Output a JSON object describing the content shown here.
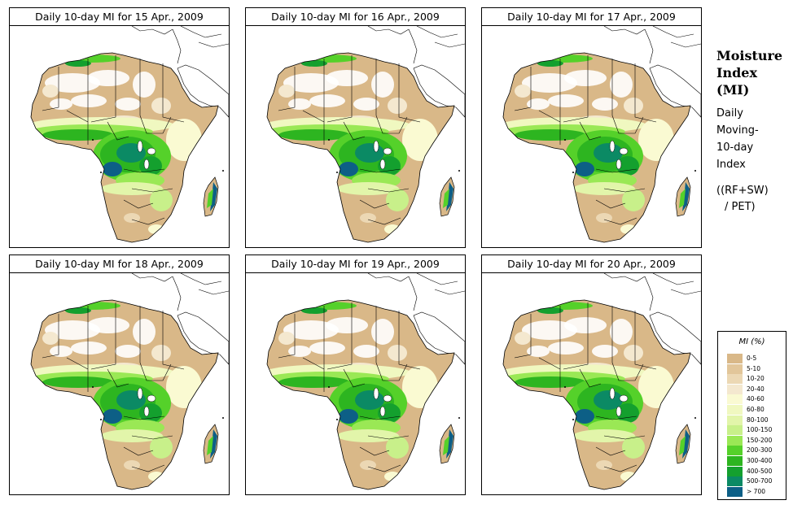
{
  "panels": [
    {
      "title": "Daily 10-day MI for  15 Apr., 2009"
    },
    {
      "title": "Daily 10-day MI for  16 Apr., 2009"
    },
    {
      "title": "Daily 10-day MI for  17 Apr., 2009"
    },
    {
      "title": "Daily 10-day MI for  18 Apr., 2009"
    },
    {
      "title": "Daily 10-day MI for  19 Apr., 2009"
    },
    {
      "title": "Daily 10-day MI for  20 Apr., 2009"
    }
  ],
  "side_info": {
    "heading_line1": "Moisture",
    "heading_line2": "Index",
    "heading_line3": "(MI)",
    "desc_line1": "Daily",
    "desc_line2": "Moving-",
    "desc_line3": "10-day",
    "desc_line4": "Index",
    "formula_line1": "((RF+SW)",
    "formula_line2": "/ PET)"
  },
  "legend": {
    "title": "MI (%)",
    "items": [
      {
        "label": "0-5",
        "color": "#d9b888"
      },
      {
        "label": "5-10",
        "color": "#e2c69a"
      },
      {
        "label": "10-20",
        "color": "#ecd8b4"
      },
      {
        "label": "20-40",
        "color": "#f4e8cf"
      },
      {
        "label": "40-60",
        "color": "#fafad2"
      },
      {
        "label": "60-80",
        "color": "#f0f8c0"
      },
      {
        "label": "80-100",
        "color": "#e2f5aa"
      },
      {
        "label": "100-150",
        "color": "#c8f08a"
      },
      {
        "label": "150-200",
        "color": "#9ae855"
      },
      {
        "label": "200-300",
        "color": "#55d12a"
      },
      {
        "label": "300-400",
        "color": "#2db520"
      },
      {
        "label": "400-500",
        "color": "#14a02e"
      },
      {
        "label": "500-700",
        "color": "#0b8a64"
      },
      {
        "label": "> 700",
        "color": "#0d5f86"
      }
    ]
  }
}
